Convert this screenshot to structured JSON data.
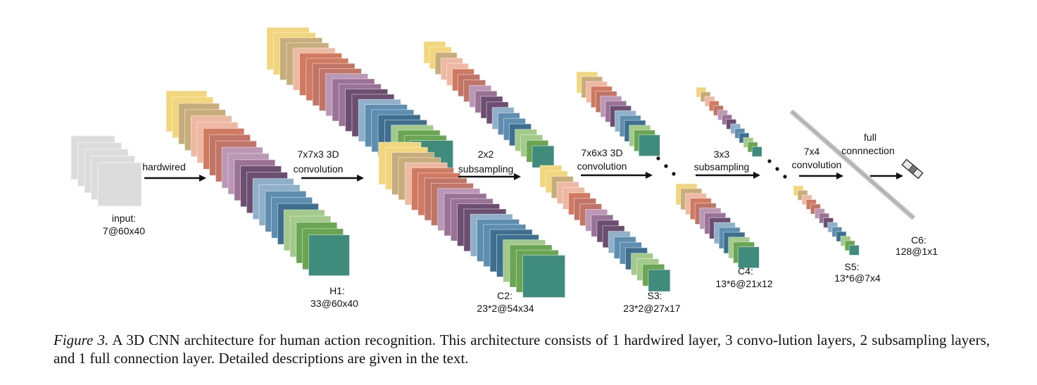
{
  "colors": {
    "input_gray": "#dcdcdc",
    "input_gray_border": "#c4c4c4",
    "palette": [
      "#f2d67e",
      "#c8ad7c",
      "#eeb9a3",
      "#cf7a61",
      "#c07566",
      "#b997b5",
      "#9a7296",
      "#6c4e70",
      "#8fb0c8",
      "#5e8eaf",
      "#3f6f8f",
      "#a3c98b",
      "#6aa553",
      "#3f8b7c"
    ],
    "arrow": "#111111",
    "full_connection_bar": "#c2c2c2"
  },
  "ops": {
    "hardwired": "hardwired",
    "conv1_line1": "7x7x3 3D",
    "conv1_line2": "convolution",
    "sub1_line1": "2x2",
    "sub1_line2": "subsampling",
    "conv2_line1": "7x6x3 3D",
    "conv2_line2": "convolution",
    "sub2_line1": "3x3",
    "sub2_line2": "subsampling",
    "conv3_line1": "7x4",
    "conv3_line2": "convolution",
    "fc_line1": "full",
    "fc_line2": "connnection"
  },
  "layers": {
    "input_name": "input:",
    "input_dims": "7@60x40",
    "h1_name": "H1:",
    "h1_dims": "33@60x40",
    "c2_name": "C2:",
    "c2_dims": "23*2@54x34",
    "s3_name": "S3:",
    "s3_dims": "23*2@27x17",
    "c4_name": "C4:",
    "c4_dims": "13*6@21x12",
    "s5_name": "S5:",
    "s5_dims": "13*6@7x4",
    "c6_name": "C6:",
    "c6_dims": "128@1x1"
  },
  "caption": {
    "label": "Figure 3.",
    "text": " A 3D CNN architecture for human action recognition. This architecture consists of 1 hardwired layer, 3 convo-lution layers, 2 subsampling layers, and 1 full connection layer. Detailed descriptions are given in the text."
  }
}
